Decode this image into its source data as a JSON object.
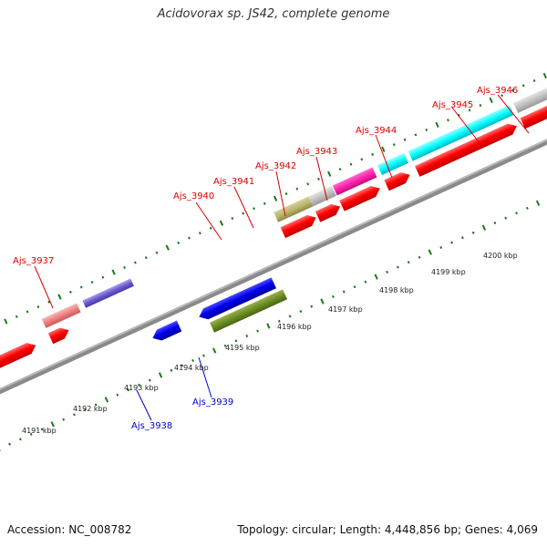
{
  "title": "Acidovorax sp. JS42, complete genome",
  "footer": {
    "accession": "Accession: NC_008782",
    "topology": "Topology: circular; Length: 4,448,856 bp; Genes: 4,069"
  },
  "scale_labels": [
    "4191 kbp",
    "4192 kbp",
    "4193 kbp",
    "4194 kbp",
    "4195 kbp",
    "4196 kbp",
    "4197 kbp",
    "4198 kbp",
    "4199 kbp",
    "4200 kbp"
  ],
  "gene_labels": {
    "forward": [
      "Ajs_3937",
      "Ajs_3940",
      "Ajs_3941",
      "Ajs_3942",
      "Ajs_3943",
      "Ajs_3944",
      "Ajs_3945",
      "Ajs_3946"
    ],
    "reverse": [
      "Ajs_3938",
      "Ajs_3939"
    ]
  },
  "colors": {
    "forward_label": "#dd0000",
    "reverse_label": "#0000cc",
    "tick": "#1a7a1a",
    "backbone": "#888888",
    "cds": "#ff0000",
    "reverse_cds": "#0000ee"
  }
}
